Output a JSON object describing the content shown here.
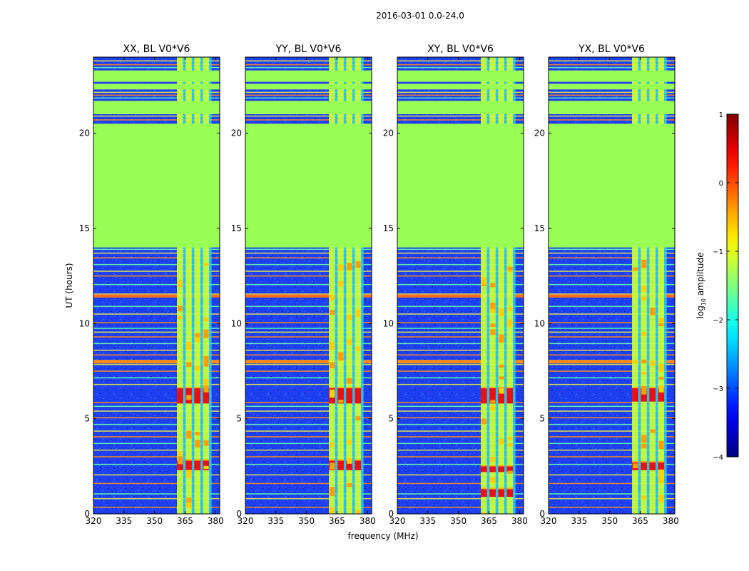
{
  "figure": {
    "suptitle": "2016-03-01 0.0-24.0",
    "colorbar_label_base": "log",
    "colorbar_label_sub": "10",
    "colorbar_label_rest": " amplitude",
    "colors": {
      "flagged": "#99FF55",
      "background_noise": "#1E40F0",
      "frame": "#000000"
    }
  },
  "chart_data": [
    {
      "type": "heatmap",
      "title": "XX, BL V0*V6",
      "xlabel": "",
      "ylabel": "UT (hours)",
      "xlim": [
        320,
        382
      ],
      "ylim": [
        0,
        24
      ],
      "xticks": [
        320,
        335,
        350,
        365,
        380
      ],
      "yticks": [
        0,
        5,
        10,
        15,
        20
      ],
      "bright_band_mhz": [
        361,
        378
      ],
      "flagged_hours": [
        [
          14.0,
          20.5
        ],
        [
          21.0,
          21.7
        ],
        [
          22.3,
          22.6
        ],
        [
          22.7,
          23.3
        ]
      ],
      "strong_hours": [
        [
          2.3,
          2.8
        ],
        [
          5.8,
          6.6
        ]
      ]
    },
    {
      "type": "heatmap",
      "title": "YY, BL V0*V6",
      "xlabel": "frequency (MHz)",
      "ylabel": "",
      "xlim": [
        320,
        382
      ],
      "ylim": [
        0,
        24
      ],
      "xticks": [
        320,
        335,
        350,
        365,
        380
      ],
      "yticks": [
        0,
        5,
        10,
        15,
        20
      ],
      "bright_band_mhz": [
        361,
        378
      ],
      "flagged_hours": [
        [
          14.0,
          20.5
        ],
        [
          21.0,
          21.7
        ],
        [
          22.3,
          22.6
        ],
        [
          22.7,
          23.3
        ]
      ],
      "strong_hours": [
        [
          2.3,
          2.8
        ],
        [
          5.8,
          6.6
        ]
      ]
    },
    {
      "type": "heatmap",
      "title": "XY, BL V0*V6",
      "xlabel": "",
      "ylabel": "",
      "xlim": [
        320,
        382
      ],
      "ylim": [
        0,
        24
      ],
      "xticks": [
        320,
        335,
        350,
        365,
        380
      ],
      "yticks": [
        0,
        5,
        10,
        15,
        20
      ],
      "bright_band_mhz": [
        361,
        378
      ],
      "flagged_hours": [
        [
          14.0,
          20.5
        ],
        [
          21.0,
          21.7
        ],
        [
          22.3,
          22.6
        ],
        [
          22.7,
          23.3
        ]
      ],
      "strong_hours": [
        [
          0.9,
          1.3
        ],
        [
          2.2,
          2.5
        ],
        [
          5.8,
          6.6
        ]
      ]
    },
    {
      "type": "heatmap",
      "title": "YX, BL V0*V6",
      "xlabel": "",
      "ylabel": "",
      "xlim": [
        320,
        382
      ],
      "ylim": [
        0,
        24
      ],
      "xticks": [
        320,
        335,
        350,
        365,
        380
      ],
      "yticks": [
        0,
        5,
        10,
        15,
        20
      ],
      "bright_band_mhz": [
        361,
        378
      ],
      "flagged_hours": [
        [
          14.0,
          20.5
        ],
        [
          21.0,
          21.7
        ],
        [
          22.3,
          22.6
        ],
        [
          22.7,
          23.3
        ]
      ],
      "strong_hours": [
        [
          2.3,
          2.7
        ],
        [
          5.9,
          6.6
        ]
      ]
    },
    {
      "type": "colorbar",
      "colormap": "jet",
      "range": [
        -4,
        1
      ],
      "ticks": [
        -4,
        -3,
        -2,
        -1,
        0,
        1
      ],
      "tick_labels": [
        "−4",
        "−3",
        "−2",
        "−1",
        "0",
        "1"
      ]
    }
  ]
}
